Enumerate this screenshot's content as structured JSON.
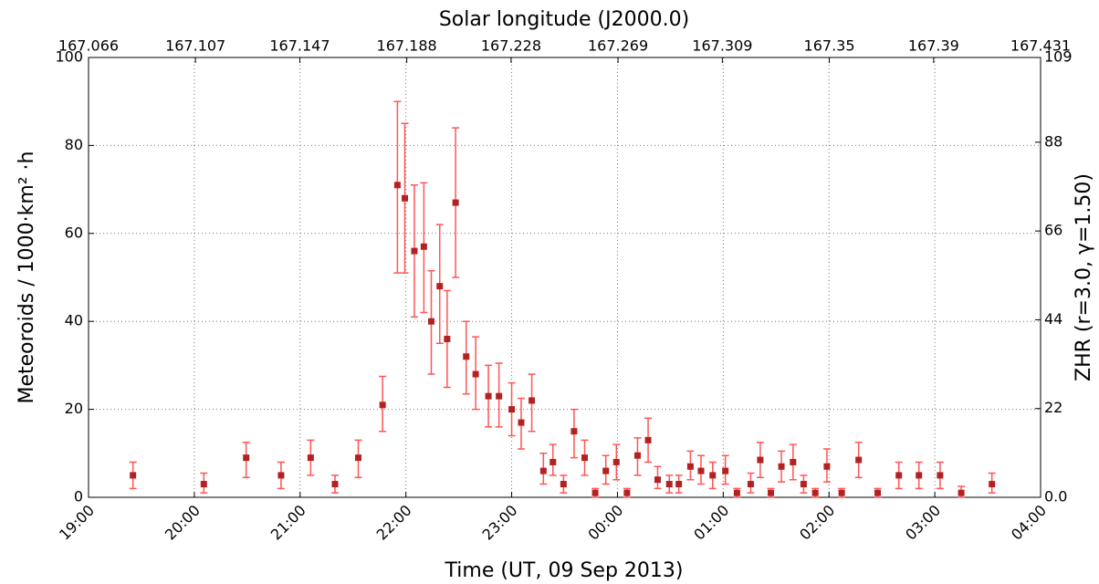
{
  "chart_data": {
    "type": "errorbar",
    "title": "Solar longitude (J2000.0)",
    "x_label": "Time (UT, 09 Sep 2013)",
    "y_label": "Meteoroids / 1000·km² ·h",
    "y2_label": "ZHR (r=3.0, γ=1.50)",
    "xlim": [
      19,
      28
    ],
    "xticks": [
      {
        "value": 19,
        "label": "19:00"
      },
      {
        "value": 20,
        "label": "20:00"
      },
      {
        "value": 21,
        "label": "21:00"
      },
      {
        "value": 22,
        "label": "22:00"
      },
      {
        "value": 23,
        "label": "23:00"
      },
      {
        "value": 24,
        "label": "00:00"
      },
      {
        "value": 25,
        "label": "01:00"
      },
      {
        "value": 26,
        "label": "02:00"
      },
      {
        "value": 27,
        "label": "03:00"
      },
      {
        "value": 28,
        "label": "04:00"
      }
    ],
    "x2lim": [
      167.066,
      167.431
    ],
    "x2ticks": [
      167.066,
      167.107,
      167.147,
      167.188,
      167.228,
      167.269,
      167.309,
      167.35,
      167.39,
      167.431
    ],
    "ylim": [
      0,
      100
    ],
    "yticks": [
      0,
      20,
      40,
      60,
      80,
      100
    ],
    "y2lim": [
      0,
      109
    ],
    "y2ticks": [
      {
        "value": 0,
        "label": "0.0"
      },
      22,
      44,
      66,
      88,
      109
    ],
    "grid": true,
    "color": "#b22222",
    "error_color": "#ff5555",
    "x": [
      19.42,
      20.09,
      20.49,
      20.82,
      21.1,
      21.33,
      21.55,
      21.78,
      21.92,
      21.99,
      22.08,
      22.17,
      22.24,
      22.32,
      22.39,
      22.47,
      22.57,
      22.66,
      22.78,
      22.88,
      23.0,
      23.09,
      23.19,
      23.3,
      23.39,
      23.49,
      23.59,
      23.69,
      23.79,
      23.89,
      23.99,
      24.09,
      24.19,
      24.29,
      24.38,
      24.49,
      24.58,
      24.69,
      24.79,
      24.9,
      25.02,
      25.13,
      25.26,
      25.35,
      25.45,
      25.55,
      25.66,
      25.76,
      25.87,
      25.98,
      26.12,
      26.28,
      26.46,
      26.66,
      26.85,
      27.05,
      27.25,
      27.54
    ],
    "values": [
      5,
      3,
      9,
      5,
      9,
      3,
      9,
      21,
      71,
      68,
      56,
      57,
      40,
      48,
      36,
      67,
      32,
      28,
      23,
      23,
      20,
      17,
      22,
      6,
      8,
      3,
      15,
      9,
      1,
      6,
      8,
      1,
      9.5,
      13,
      4,
      3,
      3,
      7,
      6,
      5,
      6,
      1,
      3,
      8.5,
      1,
      7,
      8,
      3,
      1,
      7,
      1,
      8.5,
      1,
      5,
      5,
      5,
      1,
      3
    ],
    "lower": [
      2,
      1,
      4.5,
      2,
      5,
      1,
      4.5,
      15,
      51,
      51,
      41,
      42,
      28,
      35,
      25,
      50,
      23.5,
      20,
      16,
      16,
      14,
      11,
      15,
      3,
      5,
      1,
      9,
      5,
      0,
      3,
      4,
      0,
      5,
      8,
      2,
      1,
      1,
      4,
      3,
      2,
      3,
      0,
      1,
      4.5,
      0,
      3.5,
      4,
      1,
      0,
      3.5,
      0,
      4.5,
      0,
      2,
      2,
      2,
      0,
      1
    ],
    "upper": [
      8,
      5.5,
      12.5,
      8,
      13,
      5,
      13,
      27.5,
      90,
      85,
      71,
      71.5,
      51.5,
      62,
      47,
      84,
      40,
      36.5,
      30,
      30.5,
      26,
      22.5,
      28,
      10,
      12,
      5,
      20,
      13,
      2,
      9.5,
      12,
      2,
      13.5,
      18,
      7,
      5,
      5,
      10.5,
      9.5,
      8,
      9.5,
      2,
      5.5,
      12.5,
      2,
      10.5,
      12,
      5,
      2,
      11,
      2,
      12.5,
      2,
      8,
      8,
      8,
      2.5,
      5.5
    ]
  }
}
